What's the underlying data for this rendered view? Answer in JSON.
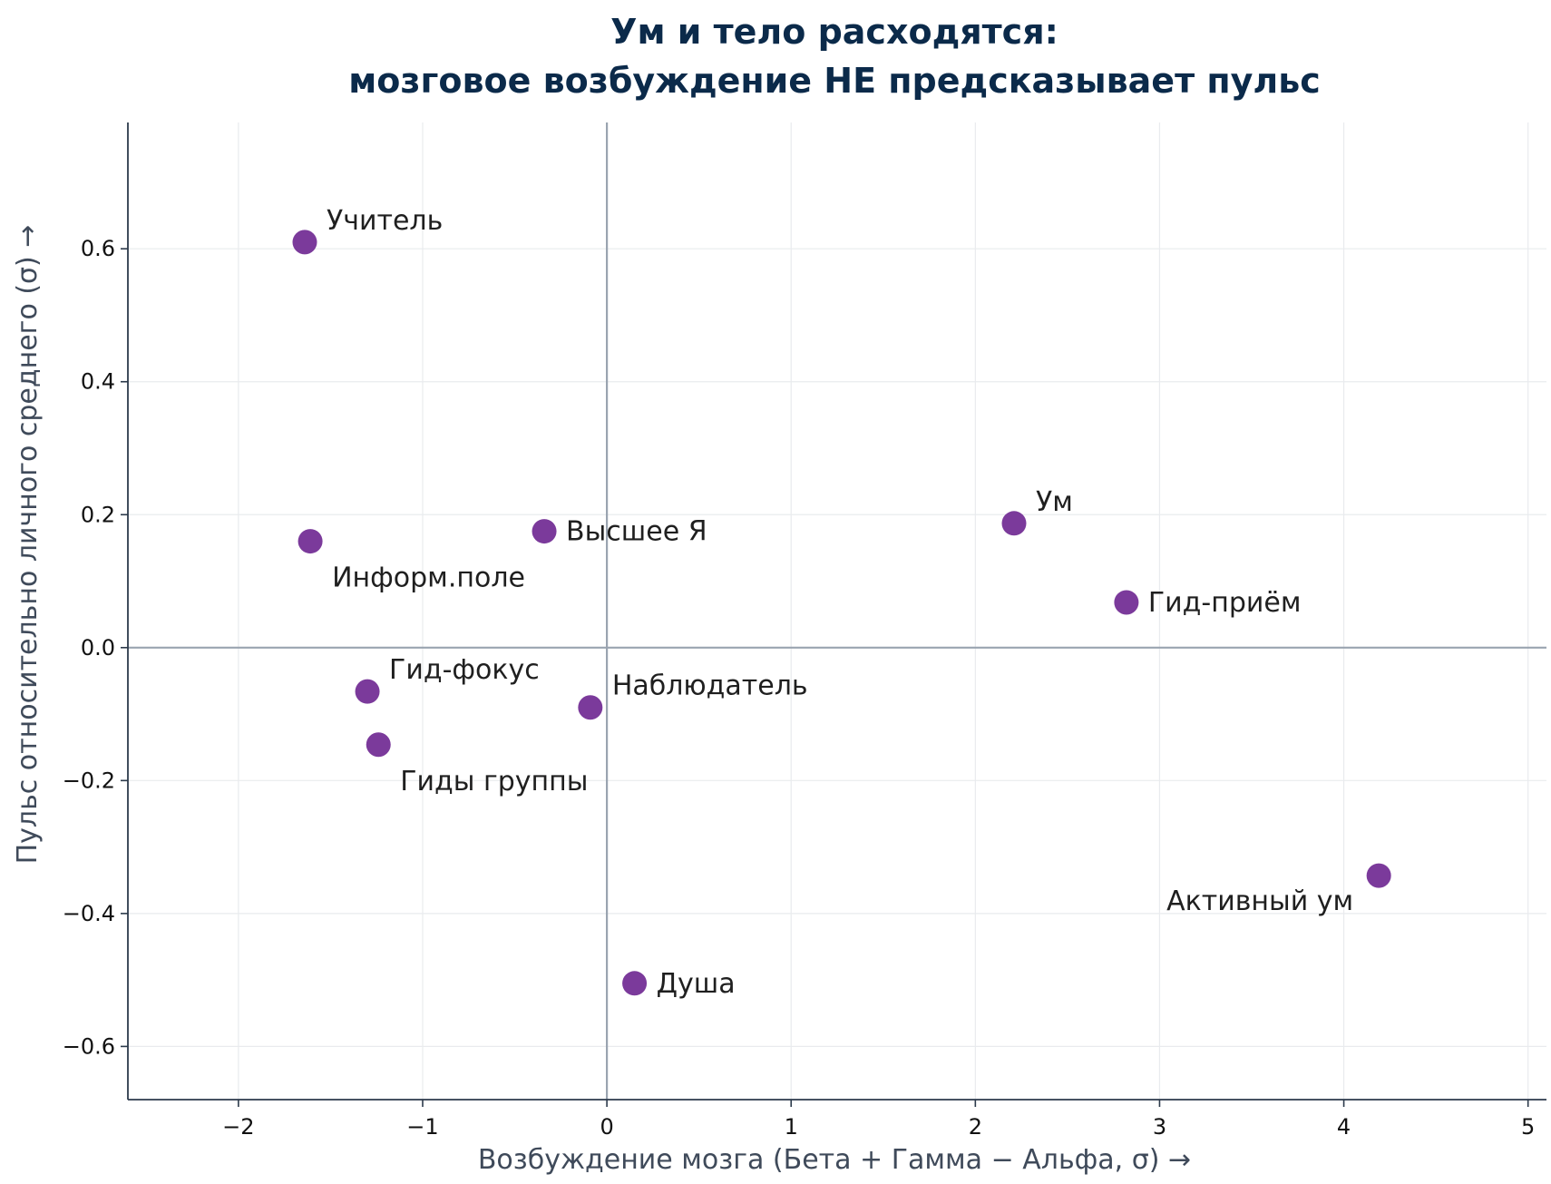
{
  "chart_data": {
    "type": "scatter",
    "title": "Ум и тело расходятся:",
    "subtitle": "мозговое возбуждение НЕ предсказывает пульс",
    "xlabel": "Возбуждение мозга  (Бета + Гамма − Альфа, σ)  →",
    "ylabel": "Пульс относительно личного среднего (σ)  →",
    "xlim": [
      -2.6,
      5.1
    ],
    "ylim": [
      -0.68,
      0.79
    ],
    "xticks": [
      -2,
      -1,
      0,
      1,
      2,
      3,
      4,
      5
    ],
    "xtick_labels": [
      "−2",
      "−1",
      "0",
      "1",
      "2",
      "3",
      "4",
      "5"
    ],
    "yticks": [
      -0.6,
      -0.4,
      -0.2,
      0.0,
      0.2,
      0.4,
      0.6
    ],
    "ytick_labels": [
      "−0.6",
      "−0.4",
      "−0.2",
      "0.0",
      "0.2",
      "0.4",
      "0.6"
    ],
    "grid": true,
    "reference_lines": {
      "x": 0,
      "y": 0
    },
    "marker_color": "#7b3a9b",
    "points": [
      {
        "label": "Учитель",
        "x": -1.64,
        "y": 0.61,
        "label_position": "upper-right"
      },
      {
        "label": "Информ.поле",
        "x": -1.61,
        "y": 0.16,
        "label_position": "lower-right"
      },
      {
        "label": "Высшее Я",
        "x": -0.34,
        "y": 0.175,
        "label_position": "right"
      },
      {
        "label": "Ум",
        "x": 2.21,
        "y": 0.187,
        "label_position": "upper-right"
      },
      {
        "label": "Гид-приём",
        "x": 2.82,
        "y": 0.068,
        "label_position": "right"
      },
      {
        "label": "Гид-фокус",
        "x": -1.3,
        "y": -0.066,
        "label_position": "upper-right"
      },
      {
        "label": "Наблюдатель",
        "x": -0.09,
        "y": -0.09,
        "label_position": "upper-right"
      },
      {
        "label": "Гиды группы",
        "x": -1.24,
        "y": -0.146,
        "label_position": "lower-right"
      },
      {
        "label": "Активный ум",
        "x": 4.19,
        "y": -0.343,
        "label_position": "lower-left"
      },
      {
        "label": "Душа",
        "x": 0.15,
        "y": -0.505,
        "label_position": "right"
      }
    ]
  }
}
